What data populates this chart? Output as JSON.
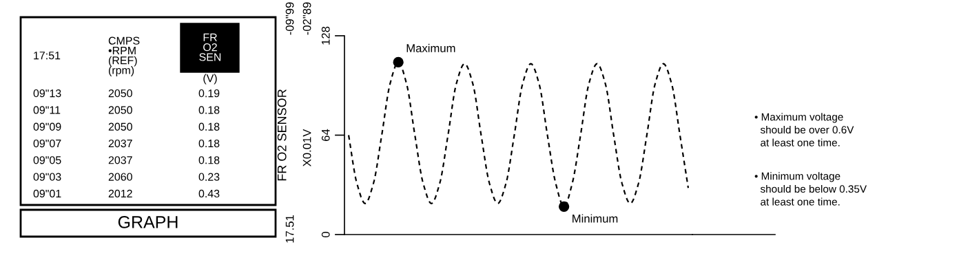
{
  "chart_data": {
    "type": "line",
    "ylabel": "FR O2 SENSOR",
    "categories": [
      null,
      null,
      null,
      null,
      null,
      null,
      null,
      null,
      null,
      null,
      null,
      null,
      null,
      null,
      null,
      null,
      null,
      null,
      null,
      null,
      null,
      null,
      null,
      null,
      null,
      null,
      null,
      null,
      null,
      null,
      null,
      null,
      null,
      null,
      null,
      null,
      null,
      null,
      null,
      null,
      null,
      null
    ],
    "series": [
      {
        "color": "#000000",
        "values": [
          64,
          33,
          20,
          33,
          64,
          97,
          111,
          97,
          64,
          33,
          20,
          33,
          64,
          97,
          110,
          97,
          64,
          33,
          20,
          33,
          64,
          97,
          110,
          97,
          64,
          33,
          18,
          33,
          64,
          97,
          110,
          97,
          64,
          33,
          20,
          33,
          64,
          97,
          110,
          97,
          64,
          30
        ]
      }
    ],
    "ylim": [
      0,
      128
    ],
    "yticks": [
      0,
      64,
      128
    ],
    "grid": false,
    "marker": "none",
    "line_style": "dashed",
    "annotations": [
      "17:51",
      "CMPS\n•RPM\n(REF)\n(rpm)",
      "FR\nO2\nSEN",
      "(V)",
      "09\"13",
      "2050",
      "0.19",
      "09\"11",
      "2050",
      "0.18",
      "09\"09",
      "2050",
      "0.18",
      "09\"07",
      "2037",
      "0.18",
      "09\"05",
      "2037",
      "0.18",
      "09\"03",
      "2060",
      "0.23",
      "09\"01",
      "2012",
      "0.43",
      "GRAPH",
      "X0.01V",
      "17.51",
      "-02\"89",
      "-09\"99",
      "Maximum",
      "Minimum",
      "• Maximum voltage\n  should be over 0.6V\n  at least one time.",
      "• Minimum voltage\n  should be below 0.35V\n  at least one time."
    ]
  }
}
